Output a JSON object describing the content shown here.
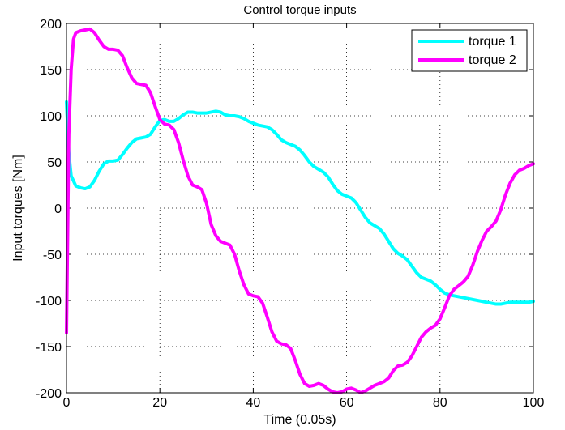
{
  "chart_data": {
    "type": "line",
    "title": "Control torque inputs",
    "xlabel": "Time (0.05s)",
    "ylabel": "Input torques [Nm]",
    "xlim": [
      0,
      100
    ],
    "ylim": [
      -200,
      200
    ],
    "xticks": [
      0,
      20,
      40,
      60,
      80,
      100
    ],
    "yticks": [
      -200,
      -150,
      -100,
      -50,
      0,
      50,
      100,
      150,
      200
    ],
    "grid": true,
    "legend_position": "top-right",
    "series": [
      {
        "name": "torque 1",
        "color": "#00ffff",
        "points": [
          [
            0,
            115
          ],
          [
            0.5,
            60
          ],
          [
            1,
            35
          ],
          [
            2,
            24
          ],
          [
            3,
            22
          ],
          [
            4,
            21
          ],
          [
            5,
            23
          ],
          [
            6,
            30
          ],
          [
            7,
            40
          ],
          [
            8,
            48
          ],
          [
            9,
            51
          ],
          [
            10,
            51
          ],
          [
            11,
            52
          ],
          [
            12,
            58
          ],
          [
            13,
            65
          ],
          [
            14,
            71
          ],
          [
            15,
            75
          ],
          [
            16,
            76
          ],
          [
            17,
            77
          ],
          [
            18,
            80
          ],
          [
            19,
            88
          ],
          [
            20,
            95
          ],
          [
            21,
            96
          ],
          [
            22,
            94
          ],
          [
            23,
            94
          ],
          [
            24,
            97
          ],
          [
            25,
            101
          ],
          [
            26,
            104
          ],
          [
            27,
            104
          ],
          [
            28,
            103
          ],
          [
            29,
            103
          ],
          [
            30,
            103
          ],
          [
            31,
            104
          ],
          [
            32,
            105
          ],
          [
            33,
            104
          ],
          [
            34,
            101
          ],
          [
            35,
            100
          ],
          [
            36,
            100
          ],
          [
            37,
            99
          ],
          [
            38,
            97
          ],
          [
            39,
            94
          ],
          [
            40,
            92
          ],
          [
            41,
            90
          ],
          [
            42,
            89
          ],
          [
            43,
            88
          ],
          [
            44,
            85
          ],
          [
            45,
            80
          ],
          [
            46,
            74
          ],
          [
            47,
            71
          ],
          [
            48,
            69
          ],
          [
            49,
            67
          ],
          [
            50,
            63
          ],
          [
            51,
            57
          ],
          [
            52,
            50
          ],
          [
            53,
            45
          ],
          [
            54,
            42
          ],
          [
            55,
            39
          ],
          [
            56,
            34
          ],
          [
            57,
            26
          ],
          [
            58,
            19
          ],
          [
            59,
            15
          ],
          [
            60,
            13
          ],
          [
            61,
            11
          ],
          [
            62,
            6
          ],
          [
            63,
            -2
          ],
          [
            64,
            -10
          ],
          [
            65,
            -16
          ],
          [
            66,
            -19
          ],
          [
            67,
            -22
          ],
          [
            68,
            -28
          ],
          [
            69,
            -36
          ],
          [
            70,
            -44
          ],
          [
            71,
            -49
          ],
          [
            72,
            -52
          ],
          [
            73,
            -56
          ],
          [
            74,
            -63
          ],
          [
            75,
            -70
          ],
          [
            76,
            -75
          ],
          [
            77,
            -77
          ],
          [
            78,
            -79
          ],
          [
            79,
            -83
          ],
          [
            80,
            -88
          ],
          [
            81,
            -92
          ],
          [
            82,
            -94
          ],
          [
            83,
            -95
          ],
          [
            84,
            -96
          ],
          [
            85,
            -97
          ],
          [
            86,
            -98
          ],
          [
            87,
            -99
          ],
          [
            88,
            -100
          ],
          [
            89,
            -101
          ],
          [
            90,
            -102
          ],
          [
            91,
            -103
          ],
          [
            92,
            -104
          ],
          [
            93,
            -104
          ],
          [
            94,
            -103
          ],
          [
            95,
            -102
          ],
          [
            96,
            -102
          ],
          [
            97,
            -102
          ],
          [
            98,
            -102
          ],
          [
            99,
            -102
          ],
          [
            100,
            -101
          ]
        ]
      },
      {
        "name": "torque 2",
        "color": "#ff00ff",
        "points": [
          [
            0,
            -135
          ],
          [
            0.5,
            80
          ],
          [
            1,
            150
          ],
          [
            1.5,
            183
          ],
          [
            2,
            190
          ],
          [
            3,
            192
          ],
          [
            4,
            193
          ],
          [
            5,
            194
          ],
          [
            6,
            190
          ],
          [
            7,
            182
          ],
          [
            8,
            175
          ],
          [
            9,
            172
          ],
          [
            10,
            172
          ],
          [
            11,
            171
          ],
          [
            12,
            165
          ],
          [
            13,
            152
          ],
          [
            14,
            141
          ],
          [
            15,
            135
          ],
          [
            16,
            134
          ],
          [
            17,
            133
          ],
          [
            18,
            125
          ],
          [
            19,
            110
          ],
          [
            20,
            96
          ],
          [
            21,
            91
          ],
          [
            22,
            90
          ],
          [
            23,
            85
          ],
          [
            24,
            71
          ],
          [
            25,
            52
          ],
          [
            26,
            35
          ],
          [
            27,
            25
          ],
          [
            28,
            23
          ],
          [
            29,
            20
          ],
          [
            30,
            5
          ],
          [
            31,
            -18
          ],
          [
            32,
            -30
          ],
          [
            33,
            -36
          ],
          [
            34,
            -38
          ],
          [
            35,
            -40
          ],
          [
            36,
            -50
          ],
          [
            37,
            -68
          ],
          [
            38,
            -83
          ],
          [
            39,
            -93
          ],
          [
            40,
            -95
          ],
          [
            41,
            -96
          ],
          [
            42,
            -103
          ],
          [
            43,
            -118
          ],
          [
            44,
            -134
          ],
          [
            45,
            -144
          ],
          [
            46,
            -147
          ],
          [
            47,
            -148
          ],
          [
            48,
            -152
          ],
          [
            49,
            -165
          ],
          [
            50,
            -180
          ],
          [
            51,
            -190
          ],
          [
            52,
            -193
          ],
          [
            53,
            -192
          ],
          [
            54,
            -190
          ],
          [
            55,
            -192
          ],
          [
            56,
            -196
          ],
          [
            57,
            -199
          ],
          [
            58,
            -200
          ],
          [
            59,
            -199
          ],
          [
            60,
            -196
          ],
          [
            61,
            -195
          ],
          [
            62,
            -197
          ],
          [
            63,
            -200
          ],
          [
            64,
            -198
          ],
          [
            65,
            -195
          ],
          [
            66,
            -192
          ],
          [
            67,
            -190
          ],
          [
            68,
            -188
          ],
          [
            69,
            -184
          ],
          [
            70,
            -176
          ],
          [
            71,
            -171
          ],
          [
            72,
            -170
          ],
          [
            73,
            -167
          ],
          [
            74,
            -160
          ],
          [
            75,
            -150
          ],
          [
            76,
            -140
          ],
          [
            77,
            -134
          ],
          [
            78,
            -130
          ],
          [
            79,
            -127
          ],
          [
            80,
            -120
          ],
          [
            81,
            -108
          ],
          [
            82,
            -95
          ],
          [
            83,
            -88
          ],
          [
            84,
            -84
          ],
          [
            85,
            -80
          ],
          [
            86,
            -74
          ],
          [
            87,
            -62
          ],
          [
            88,
            -47
          ],
          [
            89,
            -35
          ],
          [
            90,
            -25
          ],
          [
            91,
            -20
          ],
          [
            92,
            -14
          ],
          [
            93,
            -2
          ],
          [
            94,
            14
          ],
          [
            95,
            27
          ],
          [
            96,
            36
          ],
          [
            97,
            41
          ],
          [
            98,
            43
          ],
          [
            99,
            46
          ],
          [
            100,
            48
          ]
        ]
      }
    ]
  }
}
